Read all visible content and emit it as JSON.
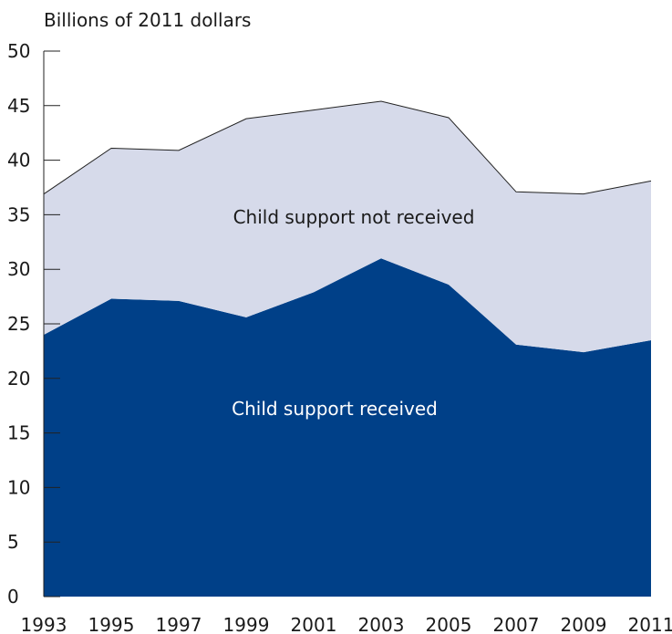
{
  "chart_data": {
    "type": "area",
    "stacked": true,
    "ylabel": "Billions of 2011 dollars",
    "x": [
      "1993",
      "1995",
      "1997",
      "1999",
      "2001",
      "2003",
      "2005",
      "2007",
      "2009",
      "2011"
    ],
    "ylim": [
      0,
      50
    ],
    "yticks": [
      "0",
      "5",
      "10",
      "15",
      "20",
      "25",
      "30",
      "35",
      "40",
      "45",
      "50"
    ],
    "series": [
      {
        "name": "Child support received",
        "values": [
          24.0,
          27.3,
          27.1,
          25.6,
          27.9,
          31.0,
          28.6,
          23.1,
          22.4,
          23.5
        ],
        "color": "#004088"
      },
      {
        "name": "Child support not received",
        "values": [
          12.9,
          13.8,
          13.8,
          18.2,
          16.7,
          14.4,
          15.3,
          14.0,
          14.5,
          14.6
        ],
        "color": "#d6daea"
      }
    ],
    "grid": false,
    "legend": "inline-labels"
  }
}
